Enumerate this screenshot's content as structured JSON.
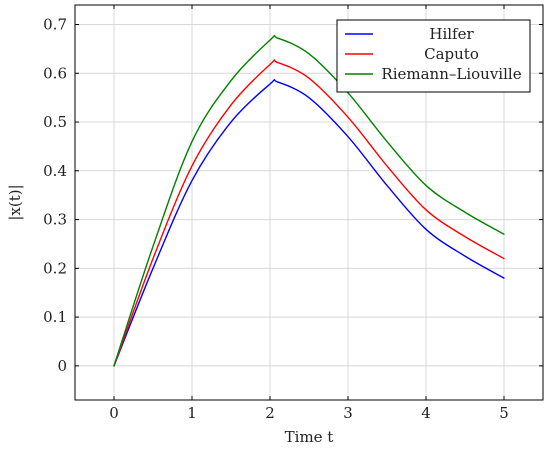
{
  "chart_data": {
    "type": "line",
    "xlabel": "Time t",
    "ylabel": "|x(t)|",
    "xlim": [
      -0.5,
      5.5
    ],
    "ylim": [
      -0.07,
      0.74
    ],
    "xticks": [
      0,
      1,
      2,
      3,
      4,
      5
    ],
    "yticks": [
      0,
      0.1,
      0.2,
      0.3,
      0.4,
      0.5,
      0.6,
      0.7
    ],
    "xtick_labels": [
      "0",
      "1",
      "2",
      "3",
      "4",
      "5"
    ],
    "ytick_labels": [
      "0",
      "0.1",
      "0.2",
      "0.3",
      "0.4",
      "0.5",
      "0.6",
      "0.7"
    ],
    "grid": true,
    "legend_position": "top-right",
    "series": [
      {
        "name": "Hilfer",
        "color": "#0000ff",
        "x": [
          0,
          0.5,
          1,
          1.5,
          2,
          2.1,
          2.5,
          3,
          3.5,
          4,
          4.5,
          5
        ],
        "y": [
          0,
          0.2,
          0.38,
          0.5,
          0.578,
          0.582,
          0.55,
          0.47,
          0.37,
          0.28,
          0.225,
          0.18
        ]
      },
      {
        "name": "Caputo",
        "color": "#ff0000",
        "x": [
          0,
          0.5,
          1,
          1.5,
          2,
          2.1,
          2.5,
          3,
          3.5,
          4,
          4.5,
          5
        ],
        "y": [
          0,
          0.22,
          0.41,
          0.535,
          0.618,
          0.622,
          0.59,
          0.51,
          0.41,
          0.32,
          0.265,
          0.22
        ]
      },
      {
        "name": "Riemann–Liouville",
        "color": "#008000",
        "x": [
          0,
          0.5,
          1,
          1.5,
          2,
          2.1,
          2.5,
          3,
          3.5,
          4,
          4.5,
          5
        ],
        "y": [
          0,
          0.245,
          0.46,
          0.585,
          0.668,
          0.672,
          0.64,
          0.56,
          0.46,
          0.37,
          0.315,
          0.27
        ]
      }
    ]
  }
}
